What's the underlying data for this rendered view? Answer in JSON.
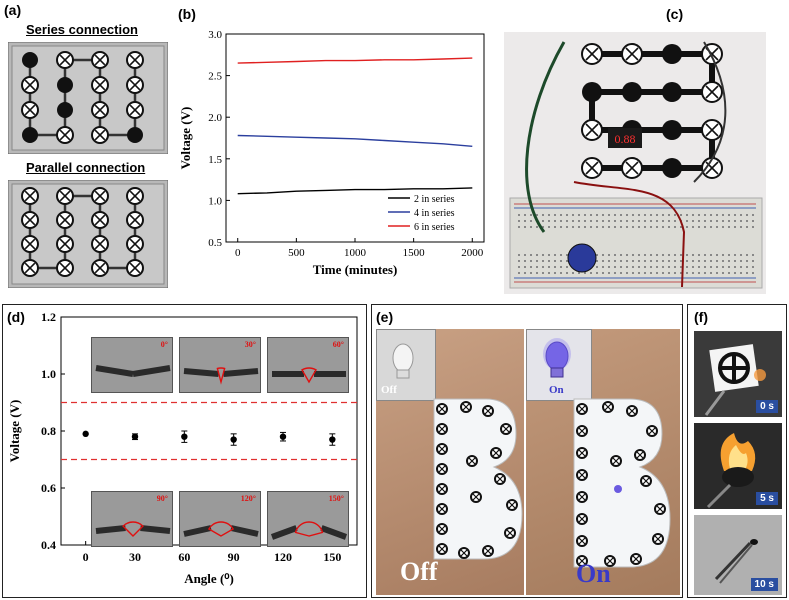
{
  "panels": {
    "a": {
      "label": "(a)",
      "series_title": "Series connection",
      "parallel_title": "Parallel connection"
    },
    "b": {
      "label": "(b)"
    },
    "c": {
      "label": "(c)",
      "display_value": "0.88"
    },
    "d": {
      "label": "(d)",
      "insets": [
        "0°",
        "30°",
        "60°",
        "90°",
        "120°",
        "150°"
      ]
    },
    "e": {
      "label": "(e)",
      "off_inset": "Off",
      "on_inset": "On",
      "off_caption": "Off",
      "on_caption": "On"
    },
    "f": {
      "label": "(f)",
      "times": [
        "0 s",
        "5 s",
        "10 s"
      ]
    }
  },
  "colors": {
    "series2": "#000000",
    "series4": "#2b3f9e",
    "series6": "#e02020",
    "threshold": "#e03030",
    "on_text": "#3a3ac8"
  },
  "chart_data": [
    {
      "type": "line",
      "xlabel": "Time (minutes)",
      "ylabel": "Voltage (V)",
      "xlim": [
        -100,
        2100
      ],
      "ylim": [
        0.5,
        3.0
      ],
      "xticks": [
        0,
        500,
        1000,
        1500,
        2000
      ],
      "yticks": [
        0.5,
        1.0,
        1.5,
        2.0,
        2.5,
        3.0
      ],
      "legend_position": "bottom-right",
      "series": [
        {
          "name": "2 in series",
          "x": [
            0,
            250,
            500,
            750,
            1000,
            1250,
            1500,
            1750,
            2000
          ],
          "y": [
            1.08,
            1.09,
            1.11,
            1.12,
            1.13,
            1.13,
            1.14,
            1.14,
            1.15
          ]
        },
        {
          "name": "4 in series",
          "x": [
            0,
            250,
            500,
            750,
            1000,
            1250,
            1500,
            1750,
            2000
          ],
          "y": [
            1.78,
            1.77,
            1.76,
            1.75,
            1.74,
            1.72,
            1.7,
            1.68,
            1.65
          ]
        },
        {
          "name": "6 in series",
          "x": [
            0,
            250,
            500,
            750,
            1000,
            1250,
            1500,
            1750,
            2000
          ],
          "y": [
            2.65,
            2.66,
            2.67,
            2.68,
            2.68,
            2.69,
            2.69,
            2.7,
            2.71
          ]
        }
      ]
    },
    {
      "type": "scatter",
      "xlabel": "Angle (⁰)",
      "ylabel": "Voltage (V)",
      "xlim": [
        -15,
        165
      ],
      "ylim": [
        0.4,
        1.2
      ],
      "xticks": [
        0,
        30,
        60,
        90,
        120,
        150
      ],
      "yticks": [
        0.4,
        0.6,
        0.8,
        1.0,
        1.2
      ],
      "thresholds": [
        0.9,
        0.7
      ],
      "points": [
        {
          "x": 0,
          "y": 0.79,
          "err": 0.0
        },
        {
          "x": 30,
          "y": 0.78,
          "err": 0.01
        },
        {
          "x": 60,
          "y": 0.78,
          "err": 0.02
        },
        {
          "x": 90,
          "y": 0.77,
          "err": 0.02
        },
        {
          "x": 120,
          "y": 0.78,
          "err": 0.015
        },
        {
          "x": 150,
          "y": 0.77,
          "err": 0.02
        }
      ]
    }
  ]
}
